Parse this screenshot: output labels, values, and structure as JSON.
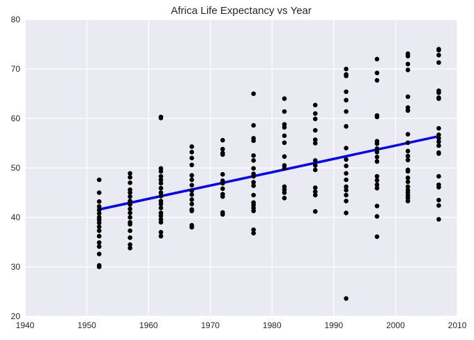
{
  "chart_data": {
    "type": "scatter",
    "title": "Africa Life Expectancy vs Year",
    "xlabel": "",
    "ylabel": "",
    "xlim": [
      1940,
      2010
    ],
    "ylim": [
      20,
      80
    ],
    "xticks": [
      1940,
      1950,
      1960,
      1970,
      1980,
      1990,
      2000,
      2010
    ],
    "yticks": [
      20,
      30,
      40,
      50,
      60,
      70,
      80
    ],
    "grid": true,
    "background": "#eaeaf2",
    "colors": {
      "points": "#000000",
      "fit_line": "#0000ff",
      "grid": "#ffffff"
    },
    "series": [
      {
        "kind": "points",
        "points": [
          [
            1952,
            47.6
          ],
          [
            1952,
            45.0
          ],
          [
            1952,
            43.2
          ],
          [
            1952,
            42.2
          ],
          [
            1952,
            41.5
          ],
          [
            1952,
            40.8
          ],
          [
            1952,
            40.0
          ],
          [
            1952,
            39.5
          ],
          [
            1952,
            38.9
          ],
          [
            1952,
            38.1
          ],
          [
            1952,
            37.3
          ],
          [
            1952,
            36.2
          ],
          [
            1952,
            34.9
          ],
          [
            1952,
            34.1
          ],
          [
            1952,
            32.6
          ],
          [
            1952,
            30.3
          ],
          [
            1952,
            30.0
          ],
          [
            1957,
            48.9
          ],
          [
            1957,
            48.1
          ],
          [
            1957,
            47.0
          ],
          [
            1957,
            45.6
          ],
          [
            1957,
            45.0
          ],
          [
            1957,
            44.2
          ],
          [
            1957,
            43.3
          ],
          [
            1957,
            42.6
          ],
          [
            1957,
            41.7
          ],
          [
            1957,
            40.9
          ],
          [
            1957,
            40.0
          ],
          [
            1957,
            39.0
          ],
          [
            1957,
            38.6
          ],
          [
            1957,
            37.3
          ],
          [
            1957,
            35.9
          ],
          [
            1957,
            34.5
          ],
          [
            1957,
            33.8
          ],
          [
            1962,
            60.3
          ],
          [
            1962,
            60.1
          ],
          [
            1962,
            49.9
          ],
          [
            1962,
            49.3
          ],
          [
            1962,
            48.3
          ],
          [
            1962,
            47.6
          ],
          [
            1962,
            46.9
          ],
          [
            1962,
            45.9
          ],
          [
            1962,
            45.0
          ],
          [
            1962,
            44.3
          ],
          [
            1962,
            43.3
          ],
          [
            1962,
            42.7
          ],
          [
            1962,
            41.9
          ],
          [
            1962,
            40.9
          ],
          [
            1962,
            40.3
          ],
          [
            1962,
            39.6
          ],
          [
            1962,
            39.0
          ],
          [
            1962,
            37.0
          ],
          [
            1962,
            36.2
          ],
          [
            1967,
            54.3
          ],
          [
            1967,
            53.2
          ],
          [
            1967,
            52.0
          ],
          [
            1967,
            50.6
          ],
          [
            1967,
            48.5
          ],
          [
            1967,
            47.6
          ],
          [
            1967,
            46.5
          ],
          [
            1967,
            45.4
          ],
          [
            1967,
            44.6
          ],
          [
            1967,
            43.6
          ],
          [
            1967,
            42.7
          ],
          [
            1967,
            41.6
          ],
          [
            1967,
            41.3
          ],
          [
            1967,
            38.4
          ],
          [
            1967,
            38.0
          ],
          [
            1972,
            55.6
          ],
          [
            1972,
            53.8
          ],
          [
            1972,
            53.0
          ],
          [
            1972,
            52.7
          ],
          [
            1972,
            48.7
          ],
          [
            1972,
            47.4
          ],
          [
            1972,
            46.9
          ],
          [
            1972,
            45.8
          ],
          [
            1972,
            44.7
          ],
          [
            1972,
            44.2
          ],
          [
            1972,
            41.0
          ],
          [
            1972,
            40.6
          ],
          [
            1977,
            65.0
          ],
          [
            1977,
            58.6
          ],
          [
            1977,
            56.0
          ],
          [
            1977,
            55.5
          ],
          [
            1977,
            52.5
          ],
          [
            1977,
            51.5
          ],
          [
            1977,
            49.9
          ],
          [
            1977,
            48.8
          ],
          [
            1977,
            48.3
          ],
          [
            1977,
            47.1
          ],
          [
            1977,
            46.4
          ],
          [
            1977,
            44.5
          ],
          [
            1977,
            43.0
          ],
          [
            1977,
            42.5
          ],
          [
            1977,
            41.9
          ],
          [
            1977,
            41.3
          ],
          [
            1977,
            37.5
          ],
          [
            1977,
            36.8
          ],
          [
            1982,
            64.0
          ],
          [
            1982,
            61.4
          ],
          [
            1982,
            58.8
          ],
          [
            1982,
            58.2
          ],
          [
            1982,
            56.5
          ],
          [
            1982,
            55.1
          ],
          [
            1982,
            52.3
          ],
          [
            1982,
            50.5
          ],
          [
            1982,
            49.9
          ],
          [
            1982,
            46.2
          ],
          [
            1982,
            45.6
          ],
          [
            1982,
            45.0
          ],
          [
            1982,
            43.9
          ],
          [
            1987,
            62.7
          ],
          [
            1987,
            61.0
          ],
          [
            1987,
            59.9
          ],
          [
            1987,
            57.6
          ],
          [
            1987,
            55.7
          ],
          [
            1987,
            55.0
          ],
          [
            1987,
            51.5
          ],
          [
            1987,
            50.5
          ],
          [
            1987,
            49.6
          ],
          [
            1987,
            46.0
          ],
          [
            1987,
            45.2
          ],
          [
            1987,
            44.5
          ],
          [
            1987,
            41.2
          ],
          [
            1992,
            70.0
          ],
          [
            1992,
            68.9
          ],
          [
            1992,
            68.6
          ],
          [
            1992,
            65.4
          ],
          [
            1992,
            63.7
          ],
          [
            1992,
            61.4
          ],
          [
            1992,
            58.4
          ],
          [
            1992,
            54.0
          ],
          [
            1992,
            51.7
          ],
          [
            1992,
            50.4
          ],
          [
            1992,
            48.9
          ],
          [
            1992,
            47.6
          ],
          [
            1992,
            46.2
          ],
          [
            1992,
            45.5
          ],
          [
            1992,
            44.5
          ],
          [
            1992,
            43.3
          ],
          [
            1992,
            40.9
          ],
          [
            1992,
            23.6
          ],
          [
            1997,
            72.0
          ],
          [
            1997,
            69.2
          ],
          [
            1997,
            67.7
          ],
          [
            1997,
            60.6
          ],
          [
            1997,
            60.3
          ],
          [
            1997,
            55.4
          ],
          [
            1997,
            54.9
          ],
          [
            1997,
            53.9
          ],
          [
            1997,
            53.2
          ],
          [
            1997,
            52.2
          ],
          [
            1997,
            51.3
          ],
          [
            1997,
            48.3
          ],
          [
            1997,
            47.5
          ],
          [
            1997,
            46.6
          ],
          [
            1997,
            45.9
          ],
          [
            1997,
            42.3
          ],
          [
            1997,
            40.2
          ],
          [
            1997,
            36.1
          ],
          [
            2002,
            73.1
          ],
          [
            2002,
            72.6
          ],
          [
            2002,
            71.0
          ],
          [
            2002,
            69.8
          ],
          [
            2002,
            64.4
          ],
          [
            2002,
            62.2
          ],
          [
            2002,
            61.6
          ],
          [
            2002,
            56.8
          ],
          [
            2002,
            55.1
          ],
          [
            2002,
            53.4
          ],
          [
            2002,
            52.4
          ],
          [
            2002,
            51.6
          ],
          [
            2002,
            49.6
          ],
          [
            2002,
            49.3
          ],
          [
            2002,
            48.0
          ],
          [
            2002,
            47.2
          ],
          [
            2002,
            46.2
          ],
          [
            2002,
            45.5
          ],
          [
            2002,
            45.0
          ],
          [
            2002,
            44.4
          ],
          [
            2002,
            43.9
          ],
          [
            2002,
            43.3
          ],
          [
            2007,
            74.0
          ],
          [
            2007,
            73.8
          ],
          [
            2007,
            72.8
          ],
          [
            2007,
            71.3
          ],
          [
            2007,
            65.6
          ],
          [
            2007,
            65.2
          ],
          [
            2007,
            64.2
          ],
          [
            2007,
            64.0
          ],
          [
            2007,
            58.0
          ],
          [
            2007,
            56.7
          ],
          [
            2007,
            56.0
          ],
          [
            2007,
            55.3
          ],
          [
            2007,
            54.5
          ],
          [
            2007,
            53.1
          ],
          [
            2007,
            52.9
          ],
          [
            2007,
            48.3
          ],
          [
            2007,
            46.6
          ],
          [
            2007,
            46.1
          ],
          [
            2007,
            43.5
          ],
          [
            2007,
            42.4
          ],
          [
            2007,
            39.6
          ]
        ]
      },
      {
        "kind": "fit_line",
        "x": [
          1952,
          2007
        ],
        "y": [
          41.6,
          56.4
        ]
      }
    ]
  }
}
